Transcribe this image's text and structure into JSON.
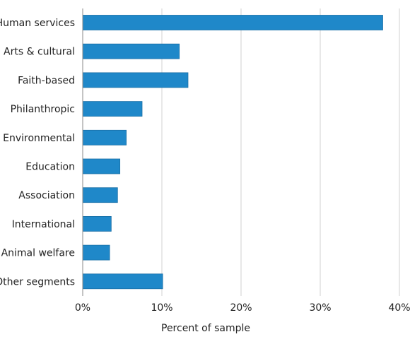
{
  "chart_data": {
    "type": "bar",
    "orientation": "horizontal",
    "categories": [
      "Human services",
      "Arts & cultural",
      "Faith-based",
      "Philanthropic",
      "Environmental",
      "Education",
      "Association",
      "International",
      "Animal welfare",
      "Other segments"
    ],
    "values": [
      37.9,
      12.2,
      13.3,
      7.5,
      5.5,
      4.7,
      4.4,
      3.6,
      3.4,
      10.1
    ],
    "xlabel": "Percent of sample",
    "xlim": [
      0,
      40
    ],
    "xticks": [
      0,
      10,
      20,
      30,
      40
    ],
    "xtick_labels": [
      "0%",
      "10%",
      "20%",
      "30%",
      "40%"
    ],
    "grid": "vertical",
    "colors": {
      "bar": "#1f88c9",
      "bar_edge": "#1a6fa6",
      "grid": "#d0d0d0",
      "axis": "#888888"
    }
  }
}
